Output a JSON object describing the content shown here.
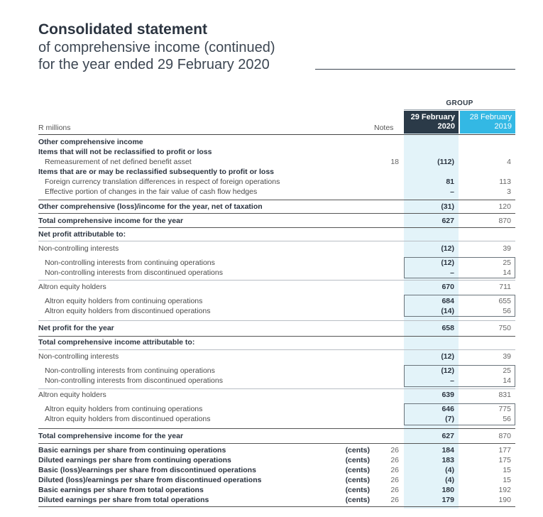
{
  "heading": {
    "title": "Consolidated statement",
    "line2": "of comprehensive income (continued)",
    "line3": "for the year ended 29 February 2020"
  },
  "columns": {
    "group": "GROUP",
    "current_line1": "29 February",
    "current_line2": "2020",
    "previous_line1": "28 February",
    "previous_line2": "2019",
    "label_header": "R millions",
    "notes_header": "Notes"
  },
  "rows": [
    {
      "label": "Other comprehensive income",
      "unit": "",
      "note": "",
      "cur": "",
      "prv": ""
    },
    {
      "label": "Items that will not be reclassified to profit or loss",
      "unit": "",
      "note": "",
      "cur": "",
      "prv": ""
    },
    {
      "label": "Remeasurement of net defined benefit asset",
      "unit": "",
      "note": "18",
      "cur": "(112)",
      "prv": "4"
    },
    {
      "label": "Items that are or may be reclassified subsequently to profit or loss",
      "unit": "",
      "note": "",
      "cur": "",
      "prv": ""
    },
    {
      "label": "Foreign currency translation differences in respect of foreign operations",
      "unit": "",
      "note": "",
      "cur": "81",
      "prv": "113"
    },
    {
      "label": "Effective portion of changes in the fair value of cash flow hedges",
      "unit": "",
      "note": "",
      "cur": "–",
      "prv": "3"
    },
    {
      "label": "Other comprehensive (loss)/income for the year, net of taxation",
      "unit": "",
      "note": "",
      "cur": "(31)",
      "prv": "120"
    },
    {
      "label": "Total comprehensive income for the year",
      "unit": "",
      "note": "",
      "cur": "627",
      "prv": "870"
    },
    {
      "label": "Net profit attributable to:",
      "unit": "",
      "note": "",
      "cur": "",
      "prv": ""
    },
    {
      "label": "Non-controlling interests",
      "unit": "",
      "note": "",
      "cur": "(12)",
      "prv": "39"
    },
    {
      "label": "Non-controlling interests from continuing operations",
      "unit": "",
      "note": "",
      "cur": "(12)",
      "prv": "25"
    },
    {
      "label": "Non-controlling interests from discontinued operations",
      "unit": "",
      "note": "",
      "cur": "–",
      "prv": "14"
    },
    {
      "label": "Altron equity holders",
      "unit": "",
      "note": "",
      "cur": "670",
      "prv": "711"
    },
    {
      "label": "Altron equity holders from continuing operations",
      "unit": "",
      "note": "",
      "cur": "684",
      "prv": "655"
    },
    {
      "label": "Altron equity holders from discontinued operations",
      "unit": "",
      "note": "",
      "cur": "(14)",
      "prv": "56"
    },
    {
      "label": "Net profit for the year",
      "unit": "",
      "note": "",
      "cur": "658",
      "prv": "750"
    },
    {
      "label": "Total comprehensive income attributable to:",
      "unit": "",
      "note": "",
      "cur": "",
      "prv": ""
    },
    {
      "label": "Non-controlling interests",
      "unit": "",
      "note": "",
      "cur": "(12)",
      "prv": "39"
    },
    {
      "label": "Non-controlling interests from continuing operations",
      "unit": "",
      "note": "",
      "cur": "(12)",
      "prv": "25"
    },
    {
      "label": "Non-controlling interests from discontinued operations",
      "unit": "",
      "note": "",
      "cur": "–",
      "prv": "14"
    },
    {
      "label": "Altron equity holders",
      "unit": "",
      "note": "",
      "cur": "639",
      "prv": "831"
    },
    {
      "label": "Altron equity holders from continuing operations",
      "unit": "",
      "note": "",
      "cur": "646",
      "prv": "775"
    },
    {
      "label": "Altron equity holders from discontinued operations",
      "unit": "",
      "note": "",
      "cur": "(7)",
      "prv": "56"
    },
    {
      "label": "Total comprehensive income for the year",
      "unit": "",
      "note": "",
      "cur": "627",
      "prv": "870"
    },
    {
      "label": "Basic earnings per share from continuing operations",
      "unit": "(cents)",
      "note": "26",
      "cur": "184",
      "prv": "177"
    },
    {
      "label": "Diluted earnings per share from continuing operations",
      "unit": "(cents)",
      "note": "26",
      "cur": "183",
      "prv": "175"
    },
    {
      "label": "Basic (loss)/earnings per share from discontinued operations",
      "unit": "(cents)",
      "note": "26",
      "cur": "(4)",
      "prv": "15"
    },
    {
      "label": "Diluted (loss)/earnings per share from discontinued operations",
      "unit": "(cents)",
      "note": "26",
      "cur": "(4)",
      "prv": "15"
    },
    {
      "label": "Basic earnings per share from total operations",
      "unit": "(cents)",
      "note": "26",
      "cur": "180",
      "prv": "192"
    },
    {
      "label": "Diluted earnings per share from total operations",
      "unit": "(cents)",
      "note": "26",
      "cur": "179",
      "prv": "190"
    }
  ]
}
